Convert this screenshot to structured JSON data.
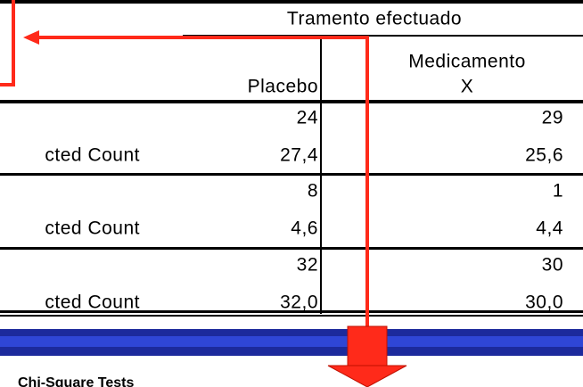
{
  "table": {
    "group_header": "Tramento efectuado",
    "columns": [
      [
        "Placebo"
      ],
      [
        "Medicamento",
        "X"
      ]
    ],
    "rows": [
      {
        "cells": [
          "24",
          "29"
        ]
      },
      {
        "label": "cted Count",
        "cells": [
          "27,4",
          "25,6"
        ]
      },
      {
        "cells": [
          "8",
          "1"
        ]
      },
      {
        "label": "cted Count",
        "cells": [
          "4,6",
          "4,4"
        ]
      },
      {
        "cells": [
          "32",
          "30"
        ]
      },
      {
        "label": "cted Count",
        "cells": [
          "32,0",
          "30,0"
        ]
      }
    ]
  },
  "footer": {
    "title": "Chi-Square Tests"
  }
}
